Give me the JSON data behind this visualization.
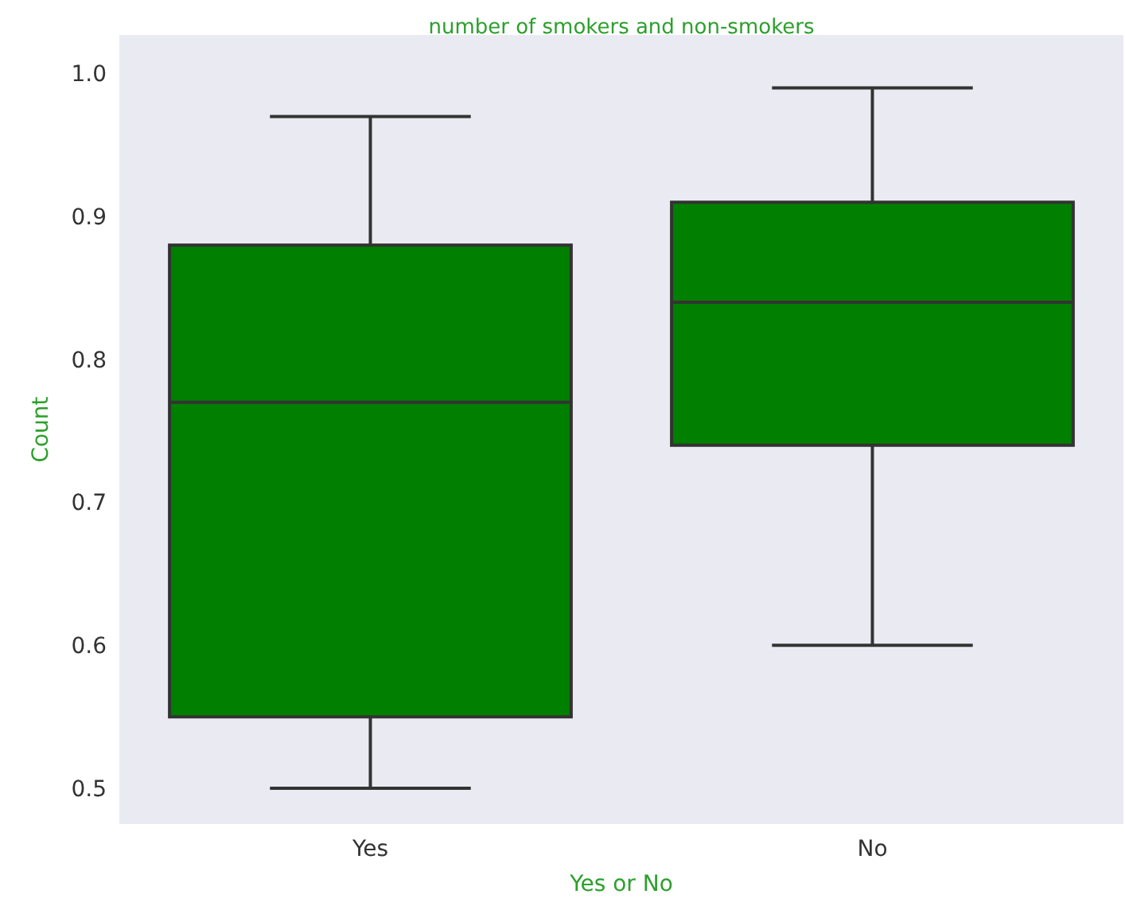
{
  "chart_data": {
    "type": "box",
    "title": "number of smokers and non-smokers",
    "xlabel": "Yes or No",
    "ylabel": "Count",
    "categories": [
      "Yes",
      "No"
    ],
    "color": "#007f00",
    "boxes": [
      {
        "low": 0.5,
        "q1": 0.55,
        "median": 0.77,
        "q3": 0.88,
        "high": 0.97
      },
      {
        "low": 0.6,
        "q1": 0.74,
        "median": 0.84,
        "q3": 0.91,
        "high": 0.99
      }
    ],
    "ylim": [
      0.475,
      1.027
    ],
    "yticks": [
      {
        "value": 0.5,
        "label": "0.5"
      },
      {
        "value": 0.6,
        "label": "0.6"
      },
      {
        "value": 0.7,
        "label": "0.7"
      },
      {
        "value": 0.8,
        "label": "0.8"
      },
      {
        "value": 0.9,
        "label": "0.9"
      },
      {
        "value": 1.0,
        "label": "1.0"
      }
    ],
    "grid": false
  }
}
